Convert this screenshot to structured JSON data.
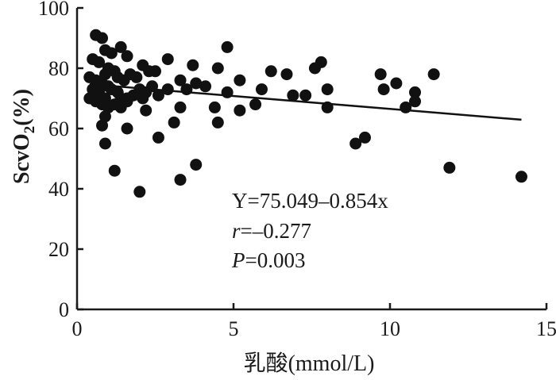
{
  "chart_data": {
    "type": "scatter",
    "title": "",
    "xlabel": "乳酸(mmol/L)",
    "ylabel_main": "ScvO",
    "ylabel_sub": "2",
    "ylabel_tail": "(%)",
    "xlim": [
      0,
      15
    ],
    "ylim": [
      0,
      100
    ],
    "xticks": [
      0,
      5,
      10,
      15
    ],
    "yticks": [
      0,
      20,
      40,
      60,
      80,
      100
    ],
    "xtick_labels": [
      "0",
      "5",
      "10",
      "15"
    ],
    "ytick_labels": [
      "0",
      "20",
      "40",
      "60",
      "80",
      "100"
    ],
    "grid": false,
    "legend": "none",
    "regression": {
      "intercept": 75.049,
      "slope": -0.854,
      "x_range": [
        0.4,
        14.2
      ]
    },
    "annotations": {
      "equation": "Y=75.049–0.854x",
      "r_symbol": "r",
      "r_value": "=–0.277",
      "p_symbol": "P",
      "p_value": "=0.003"
    },
    "colors": {
      "points": "#111111",
      "line": "#111111",
      "axis": "#1a1a1a"
    },
    "points": [
      [
        0.6,
        91
      ],
      [
        0.8,
        90
      ],
      [
        0.5,
        83
      ],
      [
        0.7,
        82
      ],
      [
        0.9,
        86
      ],
      [
        1.1,
        85
      ],
      [
        1.4,
        87
      ],
      [
        1.6,
        84
      ],
      [
        2.1,
        81
      ],
      [
        2.3,
        79
      ],
      [
        0.4,
        77
      ],
      [
        0.6,
        76
      ],
      [
        0.8,
        75
      ],
      [
        0.9,
        78
      ],
      [
        1.0,
        80
      ],
      [
        1.2,
        79
      ],
      [
        1.3,
        77
      ],
      [
        1.5,
        76
      ],
      [
        1.7,
        78
      ],
      [
        1.9,
        77
      ],
      [
        0.5,
        73
      ],
      [
        0.7,
        72
      ],
      [
        0.9,
        70
      ],
      [
        1.0,
        74
      ],
      [
        1.1,
        73
      ],
      [
        1.3,
        72
      ],
      [
        1.4,
        70
      ],
      [
        1.6,
        69
      ],
      [
        1.8,
        71
      ],
      [
        2.0,
        73
      ],
      [
        0.4,
        70
      ],
      [
        0.6,
        69
      ],
      [
        0.8,
        68
      ],
      [
        1.0,
        67
      ],
      [
        1.2,
        68
      ],
      [
        1.4,
        67
      ],
      [
        1.6,
        70
      ],
      [
        2.2,
        72
      ],
      [
        2.4,
        74
      ],
      [
        2.6,
        71
      ],
      [
        2.9,
        73
      ],
      [
        2.2,
        66
      ],
      [
        2.1,
        70
      ],
      [
        2.5,
        79
      ],
      [
        2.9,
        83
      ],
      [
        3.3,
        76
      ],
      [
        3.5,
        73
      ],
      [
        3.7,
        81
      ],
      [
        3.8,
        75
      ],
      [
        4.1,
        74
      ],
      [
        4.4,
        67
      ],
      [
        4.5,
        80
      ],
      [
        4.8,
        87
      ],
      [
        4.8,
        72
      ],
      [
        5.2,
        66
      ],
      [
        5.2,
        76
      ],
      [
        5.7,
        68
      ],
      [
        5.9,
        73
      ],
      [
        6.2,
        79
      ],
      [
        6.7,
        78
      ],
      [
        6.9,
        71
      ],
      [
        7.3,
        71
      ],
      [
        7.6,
        80
      ],
      [
        7.8,
        82
      ],
      [
        8.0,
        67
      ],
      [
        8.0,
        73
      ],
      [
        8.9,
        55
      ],
      [
        9.2,
        57
      ],
      [
        9.7,
        78
      ],
      [
        9.8,
        73
      ],
      [
        10.2,
        75
      ],
      [
        10.5,
        67
      ],
      [
        10.8,
        72
      ],
      [
        10.8,
        69
      ],
      [
        11.4,
        78
      ],
      [
        11.9,
        47
      ],
      [
        14.2,
        44
      ],
      [
        0.8,
        61
      ],
      [
        0.9,
        64
      ],
      [
        0.9,
        55
      ],
      [
        1.2,
        46
      ],
      [
        1.6,
        60
      ],
      [
        2.0,
        39
      ],
      [
        2.6,
        57
      ],
      [
        3.1,
        62
      ],
      [
        3.3,
        43
      ],
      [
        3.3,
        67
      ],
      [
        3.8,
        48
      ],
      [
        4.5,
        62
      ]
    ]
  }
}
